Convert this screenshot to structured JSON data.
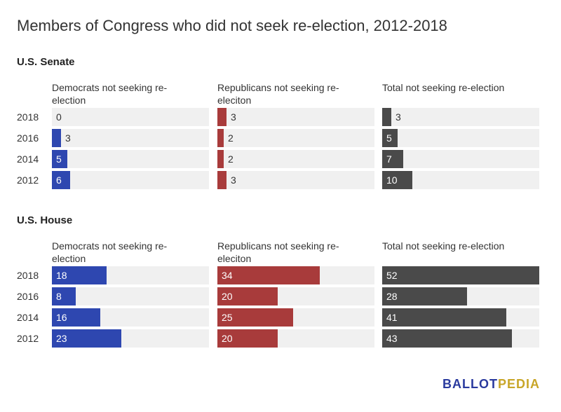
{
  "title": "Members of Congress who did not seek re-election, 2012-2018",
  "logo": {
    "part1": "BALLOT",
    "part2": "PEDIA",
    "color1": "#2a3a9e",
    "color2": "#c8a628"
  },
  "chart_data": [
    {
      "type": "bar",
      "title": "U.S. Senate",
      "categories": [
        "2018",
        "2016",
        "2014",
        "2012"
      ],
      "series": [
        {
          "name": "Democrats not seeking re-election",
          "color": "#2e47b0",
          "values": [
            0,
            3,
            5,
            6
          ]
        },
        {
          "name": "Republicans not seeking re-eleciton",
          "color": "#a83b3b",
          "values": [
            3,
            2,
            2,
            3
          ]
        },
        {
          "name": "Total not seeking re-election",
          "color": "#4a4a4a",
          "values": [
            3,
            5,
            7,
            10
          ]
        }
      ],
      "xlim": [
        0,
        52
      ]
    },
    {
      "type": "bar",
      "title": "U.S. House",
      "categories": [
        "2018",
        "2016",
        "2014",
        "2012"
      ],
      "series": [
        {
          "name": "Democrats not seeking re-election",
          "color": "#2e47b0",
          "values": [
            18,
            8,
            16,
            23
          ]
        },
        {
          "name": "Republicans not seeking re-eleciton",
          "color": "#a83b3b",
          "values": [
            34,
            20,
            25,
            20
          ]
        },
        {
          "name": "Total not seeking re-election",
          "color": "#4a4a4a",
          "values": [
            52,
            28,
            41,
            43
          ]
        }
      ],
      "xlim": [
        0,
        52
      ]
    }
  ]
}
